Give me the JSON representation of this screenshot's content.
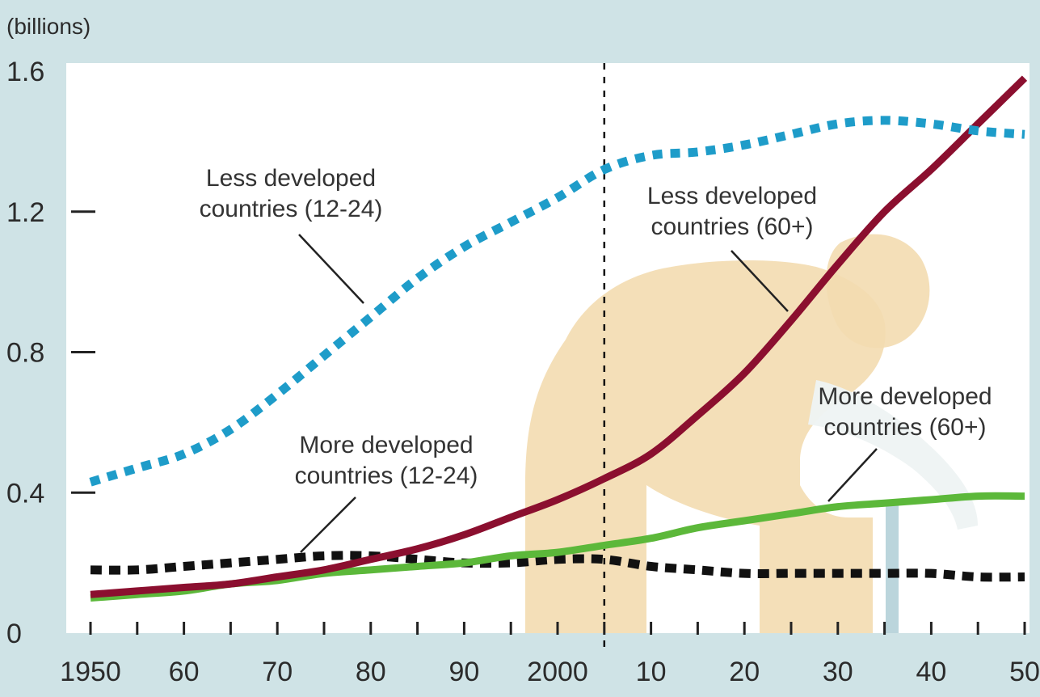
{
  "chart_data": {
    "type": "line",
    "ylabel": "(billions)",
    "xlim": [
      1950,
      2050
    ],
    "ylim": [
      0,
      1.6
    ],
    "projection_start_year": 2005,
    "x_ticks": [
      1950,
      1960,
      1970,
      1980,
      1990,
      2000,
      2010,
      2020,
      2030,
      2040,
      2050
    ],
    "x_tick_labels": [
      "1950",
      "60",
      "70",
      "80",
      "90",
      "2000",
      "10",
      "20",
      "30",
      "40",
      "50"
    ],
    "y_ticks": [
      0,
      0.4,
      0.8,
      1.2,
      1.6
    ],
    "y_tick_labels": [
      "0",
      "0.4",
      "0.8",
      "1.2",
      "1.6"
    ],
    "grid": false,
    "legend": "none",
    "series": [
      {
        "label_lines": [
          "Less developed",
          "countries (12-24)"
        ],
        "color": "#1e9cc9",
        "style": "dotted",
        "x": [
          1950,
          1955,
          1960,
          1965,
          1970,
          1975,
          1980,
          1985,
          1990,
          1995,
          2000,
          2005,
          2010,
          2015,
          2020,
          2025,
          2030,
          2035,
          2040,
          2045,
          2050
        ],
        "y": [
          0.43,
          0.47,
          0.51,
          0.58,
          0.68,
          0.79,
          0.9,
          1.01,
          1.1,
          1.17,
          1.24,
          1.32,
          1.36,
          1.37,
          1.39,
          1.42,
          1.45,
          1.46,
          1.45,
          1.43,
          1.42
        ]
      },
      {
        "label_lines": [
          "Less developed",
          "countries (60+)"
        ],
        "color": "#8b0f2f",
        "style": "solid",
        "x": [
          1950,
          1955,
          1960,
          1965,
          1970,
          1975,
          1980,
          1985,
          1990,
          1995,
          2000,
          2005,
          2010,
          2015,
          2020,
          2025,
          2030,
          2035,
          2040,
          2045,
          2050
        ],
        "y": [
          0.11,
          0.12,
          0.13,
          0.14,
          0.16,
          0.18,
          0.21,
          0.24,
          0.28,
          0.33,
          0.38,
          0.44,
          0.51,
          0.62,
          0.74,
          0.89,
          1.05,
          1.2,
          1.32,
          1.45,
          1.58
        ]
      },
      {
        "label_lines": [
          "More developed",
          "countries (60+)"
        ],
        "color": "#5cb83a",
        "style": "solid",
        "x": [
          1950,
          1955,
          1960,
          1965,
          1970,
          1975,
          1980,
          1985,
          1990,
          1995,
          2000,
          2005,
          2010,
          2015,
          2020,
          2025,
          2030,
          2035,
          2040,
          2045,
          2050
        ],
        "y": [
          0.1,
          0.11,
          0.12,
          0.14,
          0.15,
          0.17,
          0.18,
          0.19,
          0.2,
          0.22,
          0.23,
          0.25,
          0.27,
          0.3,
          0.32,
          0.34,
          0.36,
          0.37,
          0.38,
          0.39,
          0.39
        ]
      },
      {
        "label_lines": [
          "More developed",
          "countries (12-24)"
        ],
        "color": "#111111",
        "style": "dotted",
        "x": [
          1950,
          1955,
          1960,
          1965,
          1970,
          1975,
          1980,
          1985,
          1990,
          1995,
          2000,
          2005,
          2010,
          2015,
          2020,
          2025,
          2030,
          2035,
          2040,
          2045,
          2050
        ],
        "y": [
          0.18,
          0.18,
          0.19,
          0.2,
          0.21,
          0.22,
          0.22,
          0.21,
          0.2,
          0.2,
          0.21,
          0.21,
          0.19,
          0.18,
          0.17,
          0.17,
          0.17,
          0.17,
          0.17,
          0.16,
          0.16
        ]
      }
    ],
    "annotations": [
      {
        "series": 0,
        "lines": [
          "Less developed",
          "countries (12-24)"
        ]
      },
      {
        "series": 1,
        "lines": [
          "Less developed",
          "countries (60+)"
        ]
      },
      {
        "series": 2,
        "lines": [
          "More developed",
          "countries (60+)"
        ]
      },
      {
        "series": 3,
        "lines": [
          "More developed",
          "countries (12-24)"
        ]
      }
    ]
  }
}
